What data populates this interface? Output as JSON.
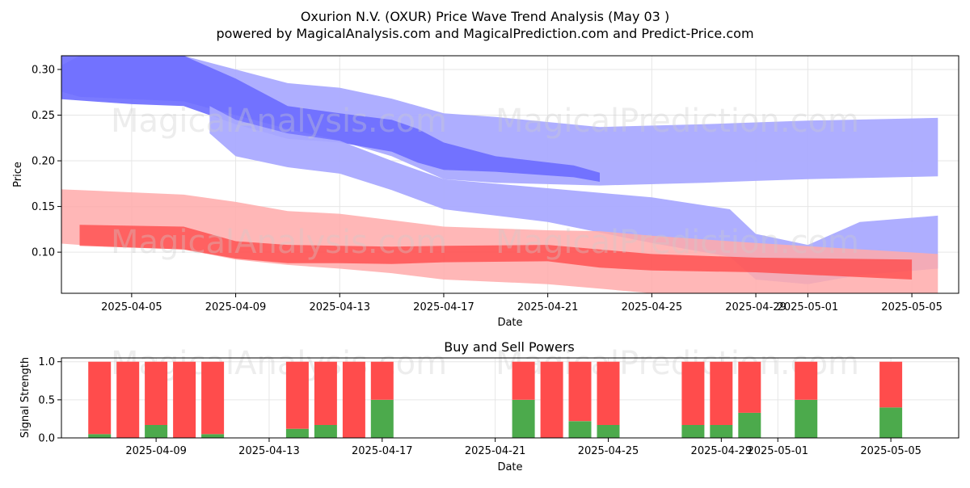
{
  "header": {
    "title": "Oxurion N.V. (OXUR) Price Wave Trend Analysis (May 03 )",
    "subtitle": "powered by MagicalAnalysis.com and MagicalPrediction.com and Predict-Price.com"
  },
  "watermarks": {
    "left": "MagicalAnalysis.com",
    "right": "MagicalPrediction.com"
  },
  "chart_data": [
    {
      "type": "area",
      "title": "",
      "xlabel": "Date",
      "ylabel": "Price",
      "ylim": [
        0.055,
        0.315
      ],
      "xlim": [
        "2025-04-02",
        "2025-05-06"
      ],
      "x_ticks": [
        "2025-04-05",
        "2025-04-09",
        "2025-04-13",
        "2025-04-17",
        "2025-04-21",
        "2025-04-25",
        "2025-04-29",
        "2025-05-01",
        "2025-05-05"
      ],
      "y_ticks": [
        0.1,
        0.15,
        0.2,
        0.25,
        0.3
      ],
      "y_tick_labels": [
        "0.10",
        "0.15",
        "0.20",
        "0.25",
        "0.30"
      ],
      "grid": true,
      "colors": {
        "blue_light": "#aaaaff",
        "blue_dark": "#6b6bff",
        "red_light": "#ffaaaa",
        "red_dark": "#ff4444",
        "purple": "#b04080"
      },
      "series": [
        {
          "name": "blue_wide_band",
          "x": [
            "2025-04-02",
            "2025-04-03",
            "2025-04-07",
            "2025-04-09",
            "2025-04-11",
            "2025-04-13",
            "2025-04-15",
            "2025-04-17",
            "2025-04-19",
            "2025-04-23",
            "2025-04-27",
            "2025-04-29",
            "2025-05-01",
            "2025-05-06"
          ],
          "upper": [
            0.3,
            0.315,
            0.315,
            0.3,
            0.285,
            0.28,
            0.268,
            0.252,
            0.248,
            0.237,
            0.24,
            0.242,
            0.244,
            0.247
          ],
          "lower": [
            0.278,
            0.27,
            0.265,
            0.25,
            0.235,
            0.222,
            0.205,
            0.18,
            0.176,
            0.173,
            0.176,
            0.178,
            0.18,
            0.183
          ]
        },
        {
          "name": "blue_dark_band",
          "x": [
            "2025-04-02",
            "2025-04-05",
            "2025-04-07",
            "2025-04-09",
            "2025-04-11",
            "2025-04-13",
            "2025-04-15",
            "2025-04-16",
            "2025-04-17",
            "2025-04-19",
            "2025-04-22",
            "2025-04-23"
          ],
          "upper": [
            0.315,
            0.315,
            0.315,
            0.29,
            0.26,
            0.252,
            0.245,
            0.235,
            0.22,
            0.205,
            0.195,
            0.187
          ],
          "lower": [
            0.268,
            0.262,
            0.26,
            0.24,
            0.224,
            0.22,
            0.21,
            0.198,
            0.19,
            0.188,
            0.182,
            0.177
          ]
        },
        {
          "name": "blue_lower_band",
          "x": [
            "2025-04-08",
            "2025-04-09",
            "2025-04-11",
            "2025-04-13",
            "2025-04-15",
            "2025-04-17",
            "2025-04-21",
            "2025-04-25",
            "2025-04-28",
            "2025-04-29",
            "2025-05-01",
            "2025-05-03",
            "2025-05-06"
          ],
          "upper": [
            0.26,
            0.245,
            0.23,
            0.222,
            0.2,
            0.18,
            0.17,
            0.16,
            0.147,
            0.12,
            0.108,
            0.133,
            0.14
          ],
          "lower": [
            0.23,
            0.205,
            0.193,
            0.186,
            0.168,
            0.147,
            0.133,
            0.11,
            0.095,
            0.07,
            0.065,
            0.075,
            0.082
          ]
        },
        {
          "name": "red_wide_band",
          "x": [
            "2025-04-02",
            "2025-04-03",
            "2025-04-07",
            "2025-04-09",
            "2025-04-11",
            "2025-04-13",
            "2025-04-15",
            "2025-04-17",
            "2025-04-21",
            "2025-04-23",
            "2025-04-25",
            "2025-04-29",
            "2025-05-06"
          ],
          "upper": [
            0.169,
            0.168,
            0.163,
            0.155,
            0.145,
            0.142,
            0.135,
            0.128,
            0.124,
            0.123,
            0.118,
            0.11,
            0.098
          ],
          "lower": [
            0.11,
            0.108,
            0.103,
            0.092,
            0.086,
            0.082,
            0.077,
            0.07,
            0.065,
            0.06,
            0.055,
            0.055,
            0.055
          ]
        },
        {
          "name": "red_dark_band",
          "x": [
            "2025-04-03",
            "2025-04-07",
            "2025-04-09",
            "2025-04-11",
            "2025-04-13",
            "2025-04-15",
            "2025-04-17",
            "2025-04-21",
            "2025-04-23",
            "2025-04-25",
            "2025-04-29",
            "2025-05-05"
          ],
          "upper": [
            0.13,
            0.128,
            0.112,
            0.108,
            0.107,
            0.106,
            0.107,
            0.108,
            0.103,
            0.098,
            0.094,
            0.092
          ],
          "lower": [
            0.107,
            0.103,
            0.093,
            0.088,
            0.088,
            0.087,
            0.089,
            0.09,
            0.083,
            0.08,
            0.078,
            0.07
          ]
        }
      ]
    },
    {
      "type": "bar",
      "title": "Buy and Sell Powers",
      "xlabel": "Date",
      "ylabel": "Signal Strength",
      "ylim": [
        0,
        1.05
      ],
      "xlim": [
        "2025-04-05",
        "2025-05-07"
      ],
      "x_ticks": [
        "2025-04-09",
        "2025-04-13",
        "2025-04-17",
        "2025-04-21",
        "2025-04-25",
        "2025-04-29",
        "2025-05-01",
        "2025-05-05"
      ],
      "y_ticks": [
        0.0,
        0.5,
        1.0
      ],
      "y_tick_labels": [
        "0.0",
        "0.5",
        "1.0"
      ],
      "colors": {
        "buy": "#4caa4c",
        "sell": "#ff4c4c"
      },
      "categories": [
        "2025-04-07",
        "2025-04-08",
        "2025-04-09",
        "2025-04-10",
        "2025-04-11",
        "2025-04-14",
        "2025-04-15",
        "2025-04-16",
        "2025-04-17",
        "2025-04-22",
        "2025-04-23",
        "2025-04-24",
        "2025-04-25",
        "2025-04-28",
        "2025-04-29",
        "2025-04-30",
        "2025-05-02",
        "2025-05-05"
      ],
      "series": [
        {
          "name": "Buy",
          "values": [
            0.05,
            0.0,
            0.17,
            0.0,
            0.05,
            0.12,
            0.17,
            0.0,
            0.5,
            0.5,
            0.0,
            0.22,
            0.17,
            0.17,
            0.17,
            0.33,
            0.5,
            0.4
          ]
        },
        {
          "name": "Sell",
          "values": [
            0.95,
            1.0,
            0.83,
            1.0,
            0.95,
            0.88,
            0.83,
            1.0,
            0.5,
            0.5,
            1.0,
            0.78,
            0.83,
            0.83,
            0.83,
            0.67,
            0.5,
            0.6
          ]
        }
      ]
    }
  ]
}
